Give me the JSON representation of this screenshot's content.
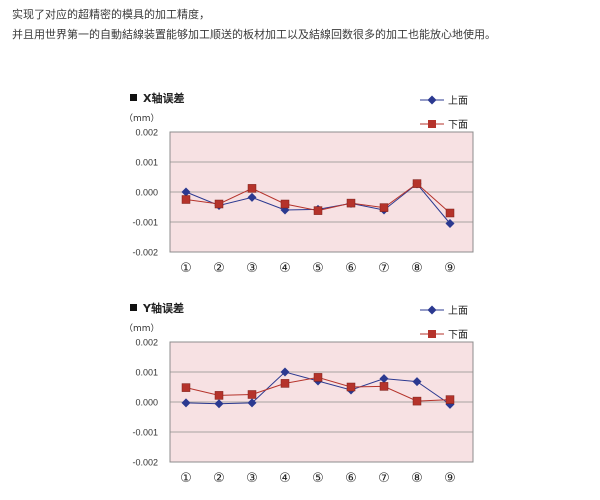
{
  "intro": {
    "line1": "实现了对应的超精密的模具的加工精度，",
    "line2": "并且用世界第一的自動結線装置能够加工顺送的板材加工以及結線回数很多的加工也能放心地使用。"
  },
  "colors": {
    "plot_bg": "#f7e1e3",
    "upper": "#2b3990",
    "lower": "#b5332b",
    "grid": "#8c8c8c",
    "text": "#333333"
  },
  "chart_data": [
    {
      "type": "line",
      "title": "X轴误差",
      "unit": "（mm）",
      "categories": [
        "①",
        "②",
        "③",
        "④",
        "⑤",
        "⑥",
        "⑦",
        "⑧",
        "⑨"
      ],
      "y_ticks": [
        "0.002",
        "0.001",
        "0.000",
        "-0.001",
        "-0.002"
      ],
      "ylim": [
        -0.002,
        0.002
      ],
      "grid": true,
      "legend_position": "top-right",
      "series": [
        {
          "name": "上面",
          "marker": "diamond",
          "color": "#2b3990",
          "values": [
            0.0,
            -0.00045,
            -0.00018,
            -0.0006,
            -0.00058,
            -0.00038,
            -0.0006,
            0.00027,
            -0.00105
          ]
        },
        {
          "name": "下面",
          "marker": "square",
          "color": "#b5332b",
          "values": [
            -0.00025,
            -0.0004,
            0.00012,
            -0.0004,
            -0.00062,
            -0.00037,
            -0.00052,
            0.00028,
            -0.0007
          ]
        }
      ]
    },
    {
      "type": "line",
      "title": "Y轴误差",
      "unit": "（mm）",
      "categories": [
        "①",
        "②",
        "③",
        "④",
        "⑤",
        "⑥",
        "⑦",
        "⑧",
        "⑨"
      ],
      "y_ticks": [
        "0.002",
        "0.001",
        "0.000",
        "-0.001",
        "-0.002"
      ],
      "ylim": [
        -0.002,
        0.002
      ],
      "grid": true,
      "legend_position": "top-right",
      "series": [
        {
          "name": "上面",
          "marker": "diamond",
          "color": "#2b3990",
          "values": [
            -3e-05,
            -6e-05,
            -3e-05,
            0.001,
            0.0007,
            0.0004,
            0.00078,
            0.00068,
            -8e-05
          ]
        },
        {
          "name": "下面",
          "marker": "square",
          "color": "#b5332b",
          "values": [
            0.00048,
            0.00022,
            0.00025,
            0.00062,
            0.00082,
            0.0005,
            0.00052,
            3e-05,
            8e-05
          ]
        }
      ]
    }
  ]
}
